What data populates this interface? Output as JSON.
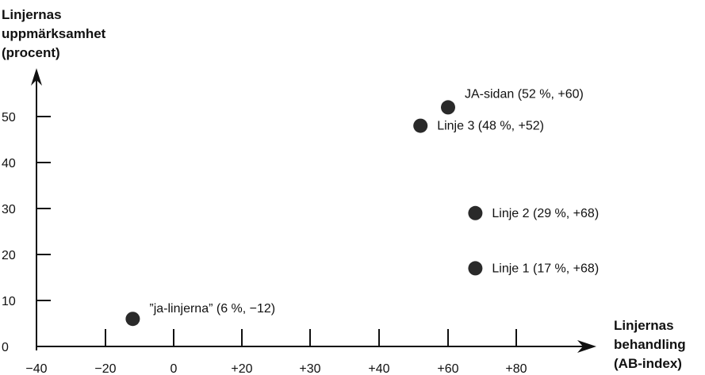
{
  "chart_data": {
    "type": "scatter",
    "title": "",
    "ylabel": [
      "Linjernas",
      "uppmärksamhet",
      "(procent)"
    ],
    "xlabel": [
      "Linjernas",
      "behandling",
      "(AB-index)"
    ],
    "x_tick_labels": [
      "−40",
      "−20",
      "0",
      "+20",
      "+30",
      "+40",
      "+60",
      "+80"
    ],
    "y_ticks": [
      0,
      10,
      20,
      30,
      40,
      50
    ],
    "y_tick_labels": [
      "0",
      "10",
      "20",
      "30",
      "40",
      "50"
    ],
    "grid": false,
    "points": [
      {
        "x": -12,
        "y": 6,
        "label": "”ja-linjerna” (6 %, −12)"
      },
      {
        "x": 52,
        "y": 48,
        "label": "Linje 3 (48 %, +52)"
      },
      {
        "x": 60,
        "y": 52,
        "label": "JA-sidan (52 %, +60)"
      },
      {
        "x": 68,
        "y": 29,
        "label": "Linje 2 (29 %, +68)"
      },
      {
        "x": 68,
        "y": 17,
        "label": "Linje 1 (17 %, +68)"
      }
    ],
    "point_color": "#2a2a2a"
  }
}
